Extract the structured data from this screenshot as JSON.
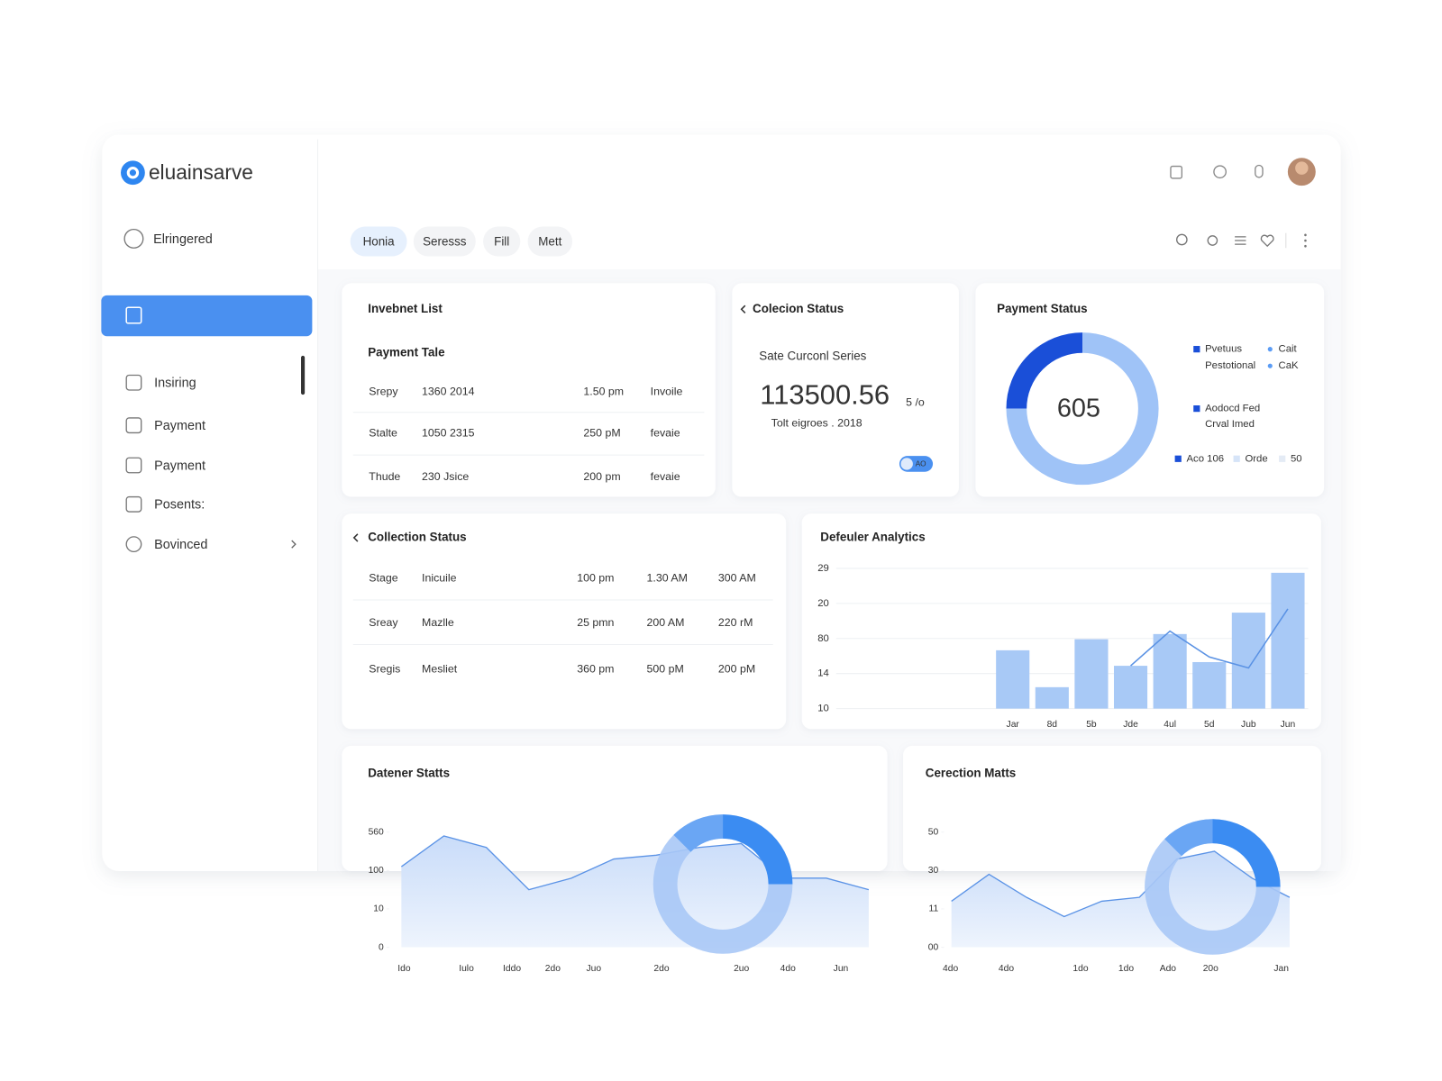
{
  "brand": "eluainsarve",
  "sidebar": {
    "user": "Elringered",
    "items": [
      "Insiring",
      "Payment",
      "Payment",
      "Posents:",
      "Bovinced"
    ]
  },
  "tabs": [
    "Honia",
    "Seresss",
    "Fill",
    "Mett"
  ],
  "invoice_list": {
    "title": "Invebnet List",
    "subtitle": "Payment Tale",
    "rows": [
      [
        "Srepy",
        "1360 2014",
        "1.50 pm",
        "Invoile"
      ],
      [
        "Stalte",
        "1050 2315",
        "250 pM",
        "fevaie"
      ],
      [
        "Thude",
        "230 Jsice",
        "200 pm",
        "fevaie"
      ]
    ]
  },
  "collection_summary": {
    "title": "Colecion Status",
    "label": "Sate Curconl Series",
    "value": "113500.56",
    "unit": "5 /o",
    "note": "Tolt eigroes . 2018",
    "toggle": "AO"
  },
  "collection_table": {
    "title": "Collection Status",
    "rows": [
      [
        "Stage",
        "Inicuile",
        "100 pm",
        "1.30 AM",
        "300 AM"
      ],
      [
        "Sreay",
        "Mazlle",
        "25 pmn",
        "200 AM",
        "220 rM"
      ],
      [
        "Sregis",
        "Mesliet",
        "360 pm",
        "500 pM",
        "200 pM"
      ]
    ]
  },
  "chart_data": [
    {
      "type": "pie",
      "title": "Payment Status",
      "center_label": "605",
      "values": [
        25,
        75
      ],
      "colors": [
        "#1a4fd8",
        "#9fc3f7"
      ],
      "legend": [
        {
          "label": "Pvetuus",
          "color": "#1a4fd8"
        },
        {
          "label": "Cait",
          "color": "#5b9cf5"
        },
        {
          "label": "Pestotional"
        },
        {
          "label": "CaK",
          "color": "#5b9cf5"
        },
        {
          "label": "Aodocd Fed",
          "color": "#1a4fd8"
        },
        {
          "label": "Crval Imed"
        },
        {
          "label": "Aco 106",
          "color": "#1a4fd8"
        },
        {
          "label": "Orde",
          "color": "#d6e4f8"
        },
        {
          "label": "50",
          "color": "#e4ebf5"
        }
      ]
    },
    {
      "type": "bar",
      "title": "Defeuler Analytics",
      "categories": [
        "Jar",
        "8d",
        "5b",
        "Jde",
        "4ul",
        "5d",
        "Jub",
        "Jun"
      ],
      "values": [
        17.9,
        12.9,
        19.4,
        15.8,
        20.1,
        16.3,
        23,
        28.4
      ],
      "color": "#a8c9f6",
      "line": {
        "color": "#5a92e4",
        "values": [
          null,
          null,
          null,
          15.8,
          20.5,
          17,
          15.5,
          23.5
        ]
      },
      "ylim": [
        10,
        29
      ],
      "yticks": [
        10,
        {
          "value": 14.75,
          "label": "14"
        },
        {
          "value": 19.5,
          "label": "80"
        },
        {
          "value": 24.25,
          "label": "20"
        },
        29
      ],
      "grid": true
    },
    {
      "type": "area",
      "title": "Datener Statts",
      "values": [
        2.1,
        2.9,
        2.6,
        1.5,
        1.8,
        2.3,
        2.4,
        2.6,
        2.7,
        1.8,
        1.8,
        1.5
      ],
      "color": "#5b93e6",
      "x_labels": [
        "Ido",
        "Iulo",
        "Iddo",
        "2do",
        "Juo",
        "2do",
        "2uo",
        "4do",
        "Jun"
      ],
      "ylim": [
        0,
        3
      ],
      "yticks": [
        0,
        {
          "value": 1,
          "label": "10"
        },
        {
          "value": 2,
          "label": "100"
        },
        {
          "value": 3,
          "label": "560"
        }
      ]
    },
    {
      "type": "area",
      "title": "Cerection Matts",
      "values": [
        1.2,
        1.9,
        1.3,
        0.8,
        1.2,
        1.3,
        2.3,
        2.5,
        1.8,
        1.3
      ],
      "color": "#5b93e6",
      "x_labels": [
        "4do",
        "4do",
        "1do",
        "1do",
        "Ado",
        "20o",
        "Jan"
      ],
      "ylim": [
        0,
        3
      ],
      "yticks": [
        {
          "value": 0,
          "label": "00"
        },
        {
          "value": 1,
          "label": "11"
        },
        {
          "value": 2,
          "label": "30"
        },
        {
          "value": 3,
          "label": "50"
        }
      ]
    }
  ]
}
